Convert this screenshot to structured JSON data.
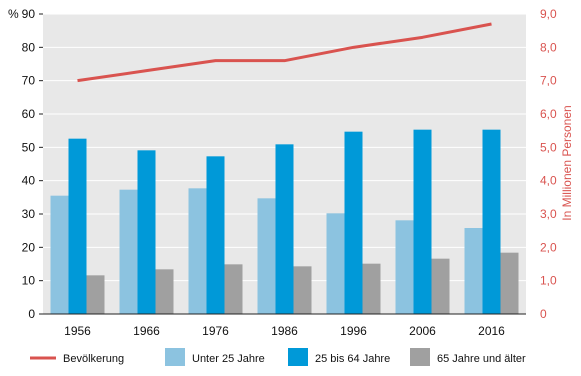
{
  "chart_data": {
    "type": "bar",
    "categories": [
      "1956",
      "1966",
      "1976",
      "1986",
      "1996",
      "2006",
      "2016"
    ],
    "left_axis": {
      "unit_label": "%",
      "ylim": [
        0,
        90
      ],
      "ticks": [
        "0",
        "10",
        "20",
        "30",
        "40",
        "50",
        "60",
        "70",
        "80",
        "90"
      ]
    },
    "right_axis": {
      "label": "In Millionen Personen",
      "ylim": [
        0,
        9
      ],
      "ticks": [
        "0",
        "1,0",
        "2,0",
        "3,0",
        "4,0",
        "5,0",
        "6,0",
        "7,0",
        "8,0",
        "9,0"
      ]
    },
    "series": [
      {
        "name": "Unter 25 Jahre",
        "type": "bar",
        "axis": "left",
        "color": "#8cc3e0",
        "values": [
          35.5,
          37.3,
          37.7,
          34.7,
          30.2,
          28.1,
          25.8
        ]
      },
      {
        "name": "25 bis 64 Jahre",
        "type": "bar",
        "axis": "left",
        "color": "#0099d8",
        "values": [
          52.6,
          49.1,
          47.3,
          50.9,
          54.7,
          55.3,
          55.3
        ]
      },
      {
        "name": "65 Jahre und älter",
        "type": "bar",
        "axis": "left",
        "color": "#a0a0a0",
        "values": [
          11.6,
          13.4,
          14.9,
          14.3,
          15.1,
          16.6,
          18.4
        ]
      },
      {
        "name": "Bevölkerung",
        "type": "line",
        "axis": "right",
        "color": "#d9534f",
        "values": [
          7.0,
          7.3,
          7.6,
          7.6,
          8.0,
          8.3,
          8.7
        ]
      }
    ],
    "legend_order": [
      "Bevölkerung",
      "Unter 25 Jahre",
      "25 bis 64 Jahre",
      "65 Jahre und älter"
    ],
    "legend_position": "bottom",
    "grid": true,
    "grid_color": "#ffffff",
    "plot_background": "#e8e8e8"
  }
}
